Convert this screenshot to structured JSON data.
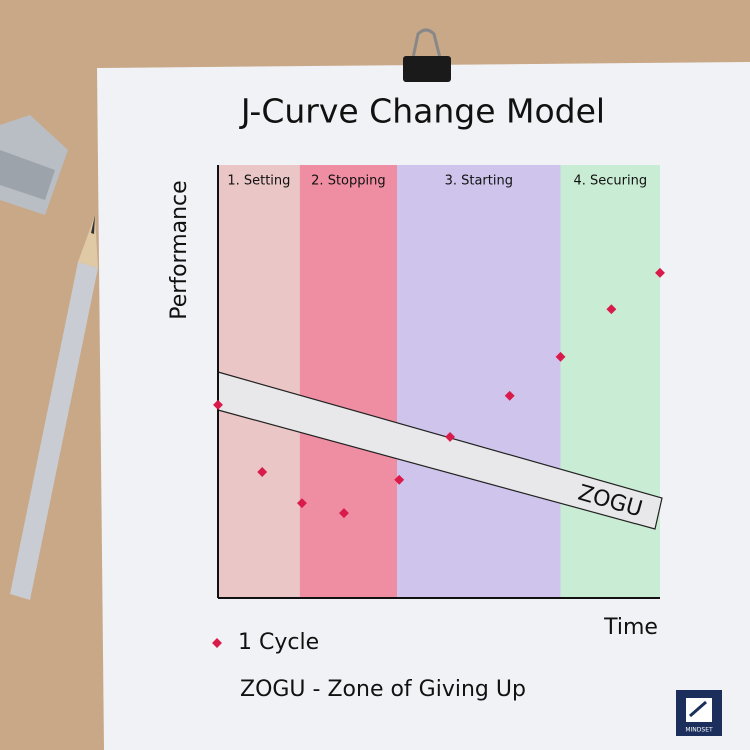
{
  "chart_data": {
    "type": "scatter",
    "title": "J-Curve Change Model",
    "x_label": "Time",
    "y_label": "Performance",
    "xlim": [
      0,
      100
    ],
    "ylim": [
      0,
      100
    ],
    "phases": [
      {
        "label": "1. Setting",
        "start": 0,
        "end": 18.5,
        "color": "#eac6c6"
      },
      {
        "label": "2. Stopping",
        "start": 18.5,
        "end": 40.5,
        "color": "#ef8ea3"
      },
      {
        "label": "3. Starting",
        "start": 40.5,
        "end": 77.5,
        "color": "#cfc5ec"
      },
      {
        "label": "4. Securing",
        "start": 77.5,
        "end": 100,
        "color": "#c9ecd4"
      }
    ],
    "series": [
      {
        "name": "1 Cycle",
        "color": "#d81b4a",
        "x": [
          0,
          10,
          19,
          28.5,
          41,
          52.5,
          66,
          77.5,
          89,
          100
        ],
        "values": [
          44.6,
          29.1,
          21.9,
          19.6,
          27.3,
          37.2,
          46.7,
          55.7,
          66.7,
          75.1
        ]
      }
    ],
    "zone_label": "ZOGU",
    "note": "ZOGU - Zone of Giving Up",
    "logo": "MINDSET"
  }
}
